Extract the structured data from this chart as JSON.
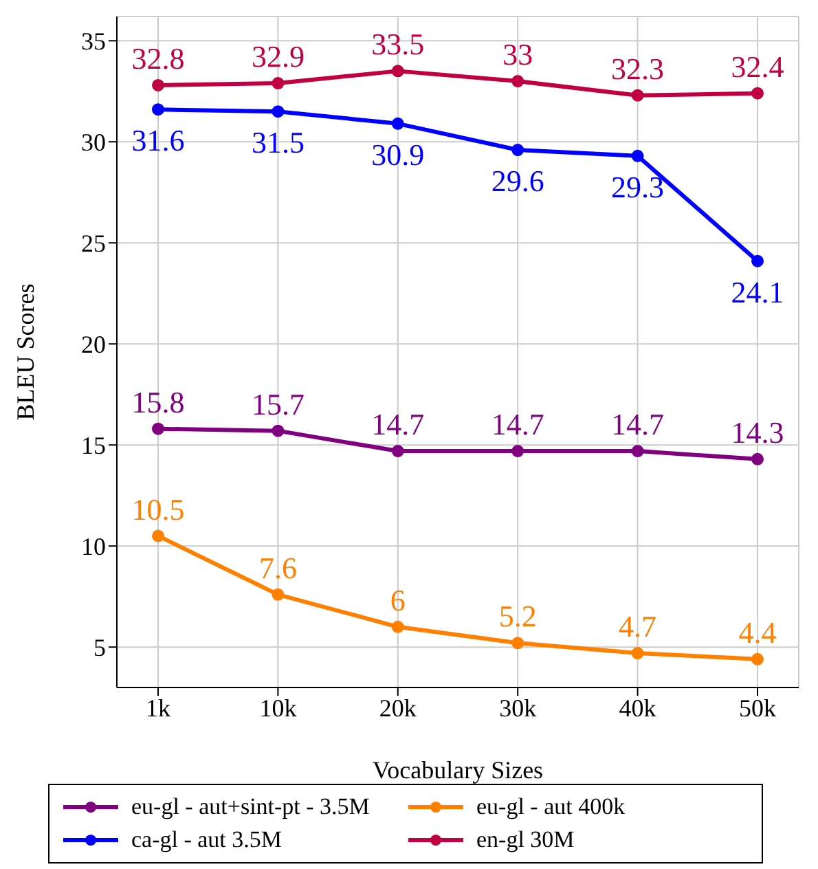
{
  "chart_data": {
    "type": "line",
    "xlabel": "Vocabulary Sizes",
    "ylabel": "BLEU Scores",
    "categories": [
      "1k",
      "10k",
      "20k",
      "30k",
      "40k",
      "50k"
    ],
    "series": [
      {
        "name": "eu-gl - aut+sint-pt - 3.5M",
        "color": "#800080",
        "values": [
          15.8,
          15.7,
          14.7,
          14.7,
          14.7,
          14.3
        ]
      },
      {
        "name": "eu-gl - aut 400k",
        "color": "#ff8000",
        "values": [
          10.5,
          7.6,
          6,
          5.2,
          4.7,
          4.4
        ]
      },
      {
        "name": "ca-gl - aut 3.5M",
        "color": "#0000ff",
        "values": [
          31.6,
          31.5,
          30.9,
          29.6,
          29.3,
          24.1
        ]
      },
      {
        "name": "en-gl 30M",
        "color": "#c00040",
        "values": [
          32.8,
          32.9,
          33.5,
          33,
          32.3,
          32.4
        ]
      }
    ],
    "ylim": [
      3,
      36.2
    ],
    "yticks": [
      5,
      10,
      15,
      20,
      25,
      30,
      35
    ],
    "grid": true,
    "legend": "bottom",
    "marker": "circle",
    "line_style": "solid",
    "data_labels": true
  }
}
